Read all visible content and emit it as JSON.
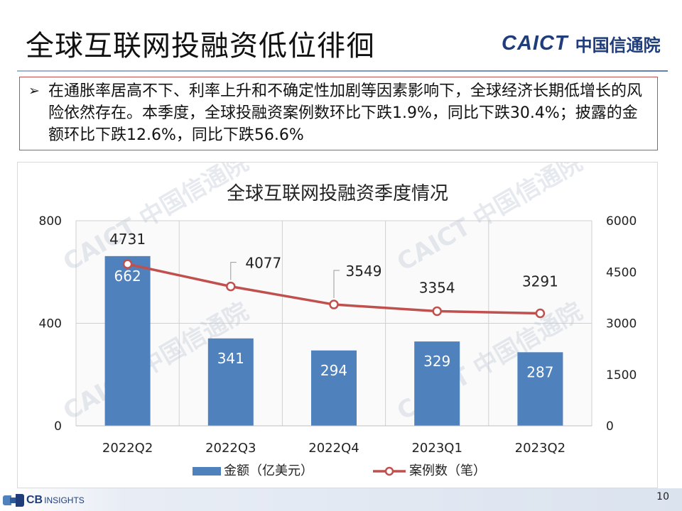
{
  "header": {
    "title": "全球互联网投融资低位徘徊",
    "logo_en": "CAICT",
    "logo_cn": "中国信通院"
  },
  "summary": {
    "bullet": "➢",
    "text": "在通胀率居高不下、利率上升和不确定性加剧等因素影响下，全球经济长期低增长的风险依然存在。本季度，全球投融资案例数环比下跌1.9%，同比下跌30.4%；披露的金额环比下跌12.6%，同比下跌56.6%"
  },
  "watermark": {
    "text": "CAICT 中国信通院"
  },
  "chart_data": {
    "type": "bar+line",
    "title": "全球互联网投融资季度情况",
    "categories": [
      "2022Q2",
      "2022Q3",
      "2022Q4",
      "2023Q1",
      "2023Q2"
    ],
    "series": [
      {
        "name": "金额（亿美元）",
        "type": "bar",
        "axis": "left",
        "color": "#4f81bd",
        "values": [
          662,
          341,
          294,
          329,
          287
        ]
      },
      {
        "name": "案例数（笔）",
        "type": "line",
        "axis": "right",
        "color": "#c0504d",
        "values": [
          4731,
          4077,
          3549,
          3354,
          3291
        ]
      }
    ],
    "y_left": {
      "min": 0,
      "max": 800,
      "ticks": [
        0,
        400,
        800
      ]
    },
    "y_right": {
      "min": 0,
      "max": 6000,
      "ticks": [
        0,
        1500,
        3000,
        4500,
        6000
      ]
    },
    "grid": true,
    "legend": "bottom"
  },
  "footer": {
    "cb_bold": "CB",
    "cb_text": "INSIGHTS",
    "page_number": "10"
  }
}
